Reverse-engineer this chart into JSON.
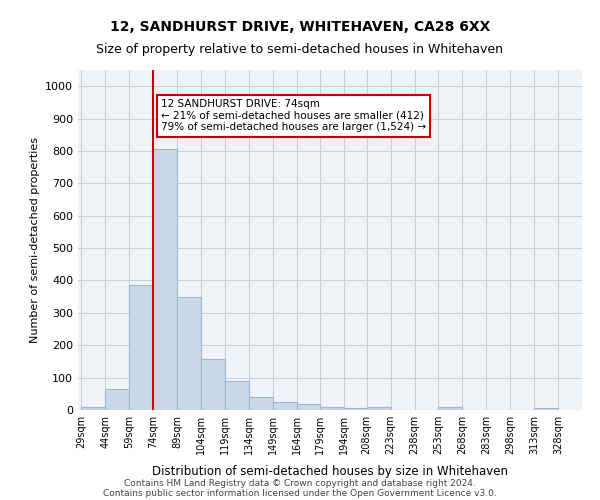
{
  "title_line1": "12, SANDHURST DRIVE, WHITEHAVEN, CA28 6XX",
  "title_line2": "Size of property relative to semi-detached houses in Whitehaven",
  "xlabel": "Distribution of semi-detached houses by size in Whitehaven",
  "ylabel": "Number of semi-detached properties",
  "footer_line1": "Contains HM Land Registry data © Crown copyright and database right 2024.",
  "footer_line2": "Contains public sector information licensed under the Open Government Licence v3.0.",
  "annotation_line1": "12 SANDHURST DRIVE: 74sqm",
  "annotation_line2": "← 21% of semi-detached houses are smaller (412)",
  "annotation_line3": "79% of semi-detached houses are larger (1,524) →",
  "property_size": 74,
  "bar_left_edges": [
    29,
    44,
    59,
    74,
    89,
    104,
    119,
    134,
    149,
    164,
    179,
    194,
    208,
    223,
    238,
    253,
    268,
    283,
    298,
    313
  ],
  "bar_heights": [
    10,
    65,
    385,
    805,
    350,
    158,
    90,
    40,
    25,
    18,
    10,
    7,
    10,
    0,
    0,
    10,
    0,
    0,
    0,
    5
  ],
  "bin_width": 15,
  "tick_labels": [
    "29sqm",
    "44sqm",
    "59sqm",
    "74sqm",
    "89sqm",
    "104sqm",
    "119sqm",
    "134sqm",
    "149sqm",
    "164sqm",
    "179sqm",
    "194sqm",
    "208sqm",
    "223sqm",
    "238sqm",
    "253sqm",
    "268sqm",
    "283sqm",
    "298sqm",
    "313sqm",
    "328sqm"
  ],
  "ylim": [
    0,
    1050
  ],
  "yticks": [
    0,
    100,
    200,
    300,
    400,
    500,
    600,
    700,
    800,
    900,
    1000
  ],
  "bar_color": "#c8d8e8",
  "bar_edge_color": "#a0b8cc",
  "grid_color": "#c8d0d8",
  "vline_color": "#cc0000",
  "annotation_box_color": "#cc0000",
  "background_color": "#f0f4f8"
}
